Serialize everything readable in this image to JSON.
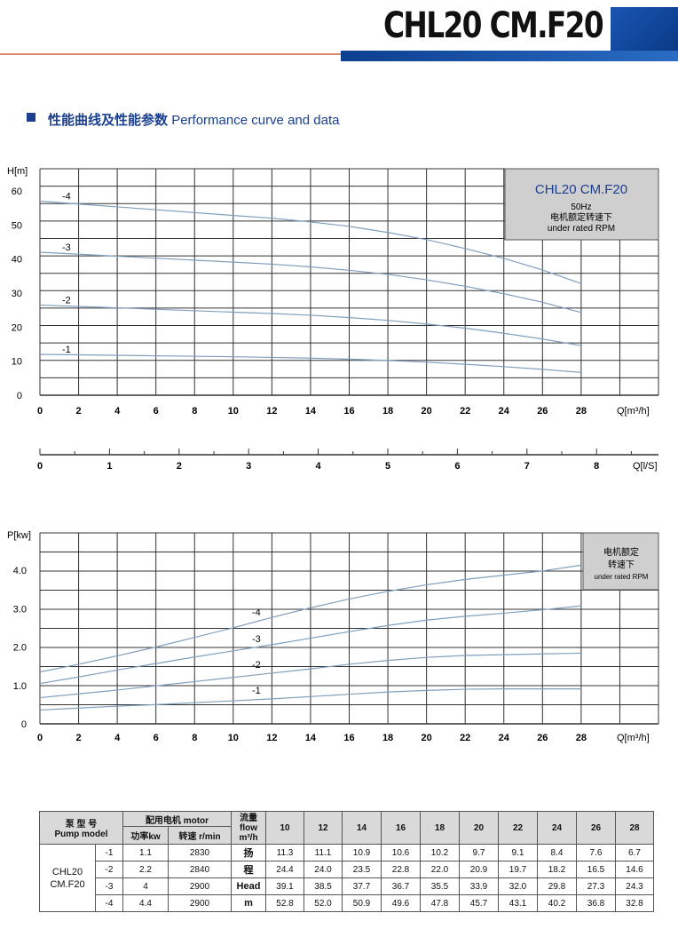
{
  "header": {
    "title": "CHL20 CM.F20"
  },
  "section": {
    "square": "■",
    "title_zh": "性能曲线及性能参数",
    "title_en": "Performance curve and data"
  },
  "chart_data": [
    {
      "type": "line",
      "ylabel": "H[m]",
      "xlabel": "Q[m³/h]",
      "xlim": [
        0,
        28
      ],
      "ylim": [
        0,
        60
      ],
      "xticks": [
        "0",
        "2",
        "4",
        "6",
        "8",
        "10",
        "12",
        "14",
        "16",
        "18",
        "20",
        "22",
        "24",
        "26",
        "28"
      ],
      "yticks": [
        "0",
        "10",
        "20",
        "30",
        "40",
        "50",
        "60"
      ],
      "box": {
        "line1": "CHL20   CM.F20",
        "line2": "50Hz",
        "line3": "电机额定转速下",
        "line4": "under rated RPM"
      },
      "x": [
        0,
        10,
        12,
        14,
        16,
        18,
        20,
        22,
        24,
        26,
        28
      ],
      "series": [
        {
          "name": "-4",
          "values": [
            57,
            52.8,
            52.0,
            50.9,
            49.6,
            47.8,
            45.7,
            43.1,
            40.2,
            36.8,
            32.8
          ]
        },
        {
          "name": "-3",
          "values": [
            42,
            39.1,
            38.5,
            37.7,
            36.7,
            35.5,
            33.9,
            32.0,
            29.8,
            27.3,
            24.3
          ]
        },
        {
          "name": "-2",
          "values": [
            26.5,
            24.4,
            24.0,
            23.5,
            22.8,
            22.0,
            20.9,
            19.7,
            18.2,
            16.5,
            14.6
          ]
        },
        {
          "name": "-1",
          "values": [
            12,
            11.3,
            11.1,
            10.9,
            10.6,
            10.2,
            9.7,
            9.1,
            8.4,
            7.6,
            6.7
          ]
        }
      ]
    },
    {
      "type": "axis",
      "xlabel": "Q[l/S]",
      "xticks": [
        "0",
        "1",
        "2",
        "3",
        "4",
        "5",
        "6",
        "7",
        "8"
      ]
    },
    {
      "type": "line",
      "ylabel": "P[kw]",
      "xlabel": "Q[m³/h]",
      "xlim": [
        0,
        28
      ],
      "ylim": [
        0,
        4.5
      ],
      "xticks": [
        "0",
        "2",
        "4",
        "6",
        "8",
        "10",
        "12",
        "14",
        "16",
        "18",
        "20",
        "22",
        "24",
        "26",
        "28"
      ],
      "yticks": [
        "0",
        "1.0",
        "2.0",
        "3.0",
        "4.0"
      ],
      "box": {
        "line1": "电机额定",
        "line2": "转速下",
        "line3": "under rated RPM"
      },
      "x": [
        0,
        2,
        4,
        6,
        8,
        10,
        12,
        14,
        16,
        18,
        20,
        22,
        24,
        26,
        28
      ],
      "series": [
        {
          "name": "-4",
          "values": [
            1.35,
            1.55,
            1.77,
            2.0,
            2.25,
            2.5,
            2.77,
            3.02,
            3.25,
            3.45,
            3.62,
            3.76,
            3.87,
            3.98,
            4.13
          ]
        },
        {
          "name": "-3",
          "values": [
            1.05,
            1.22,
            1.4,
            1.57,
            1.74,
            1.9,
            2.06,
            2.23,
            2.4,
            2.56,
            2.7,
            2.8,
            2.88,
            2.97,
            3.07
          ]
        },
        {
          "name": "-2",
          "values": [
            0.68,
            0.78,
            0.88,
            0.99,
            1.1,
            1.21,
            1.32,
            1.43,
            1.55,
            1.65,
            1.73,
            1.78,
            1.8,
            1.82,
            1.84
          ]
        },
        {
          "name": "-1",
          "values": [
            0.36,
            0.41,
            0.46,
            0.5,
            0.55,
            0.6,
            0.65,
            0.71,
            0.77,
            0.83,
            0.87,
            0.9,
            0.91,
            0.91,
            0.91
          ]
        }
      ]
    }
  ],
  "table": {
    "h_model_zh": "泵 型 号",
    "h_model_en": "Pump model",
    "h_motor": "配用电机 motor",
    "h_power": "功率kw",
    "h_speed": "转速 r/min",
    "h_flow": "流量\nflow\nm³/h",
    "flows": [
      "10",
      "12",
      "14",
      "16",
      "18",
      "20",
      "22",
      "24",
      "26",
      "28"
    ],
    "model": "CHL20\nCM.F20",
    "head_label": [
      "扬",
      "程",
      "Head",
      "m"
    ],
    "rows": [
      {
        "stage": "-1",
        "power": "1.1",
        "speed": "2830",
        "head": [
          "11.3",
          "11.1",
          "10.9",
          "10.6",
          "10.2",
          "9.7",
          "9.1",
          "8.4",
          "7.6",
          "6.7"
        ]
      },
      {
        "stage": "-2",
        "power": "2.2",
        "speed": "2840",
        "head": [
          "24.4",
          "24.0",
          "23.5",
          "22.8",
          "22.0",
          "20.9",
          "19.7",
          "18.2",
          "16.5",
          "14.6"
        ]
      },
      {
        "stage": "-3",
        "power": "4",
        "speed": "2900",
        "head": [
          "39.1",
          "38.5",
          "37.7",
          "36.7",
          "35.5",
          "33.9",
          "32.0",
          "29.8",
          "27.3",
          "24.3"
        ]
      },
      {
        "stage": "-4",
        "power": "4.4",
        "speed": "2900",
        "head": [
          "52.8",
          "52.0",
          "50.9",
          "49.6",
          "47.8",
          "45.7",
          "43.1",
          "40.2",
          "36.8",
          "32.8"
        ]
      }
    ]
  },
  "colors": {
    "curve": "#7f9fbe",
    "grid": "#333333",
    "box": "#cfcfcf",
    "brand": "#1b3f8f"
  }
}
